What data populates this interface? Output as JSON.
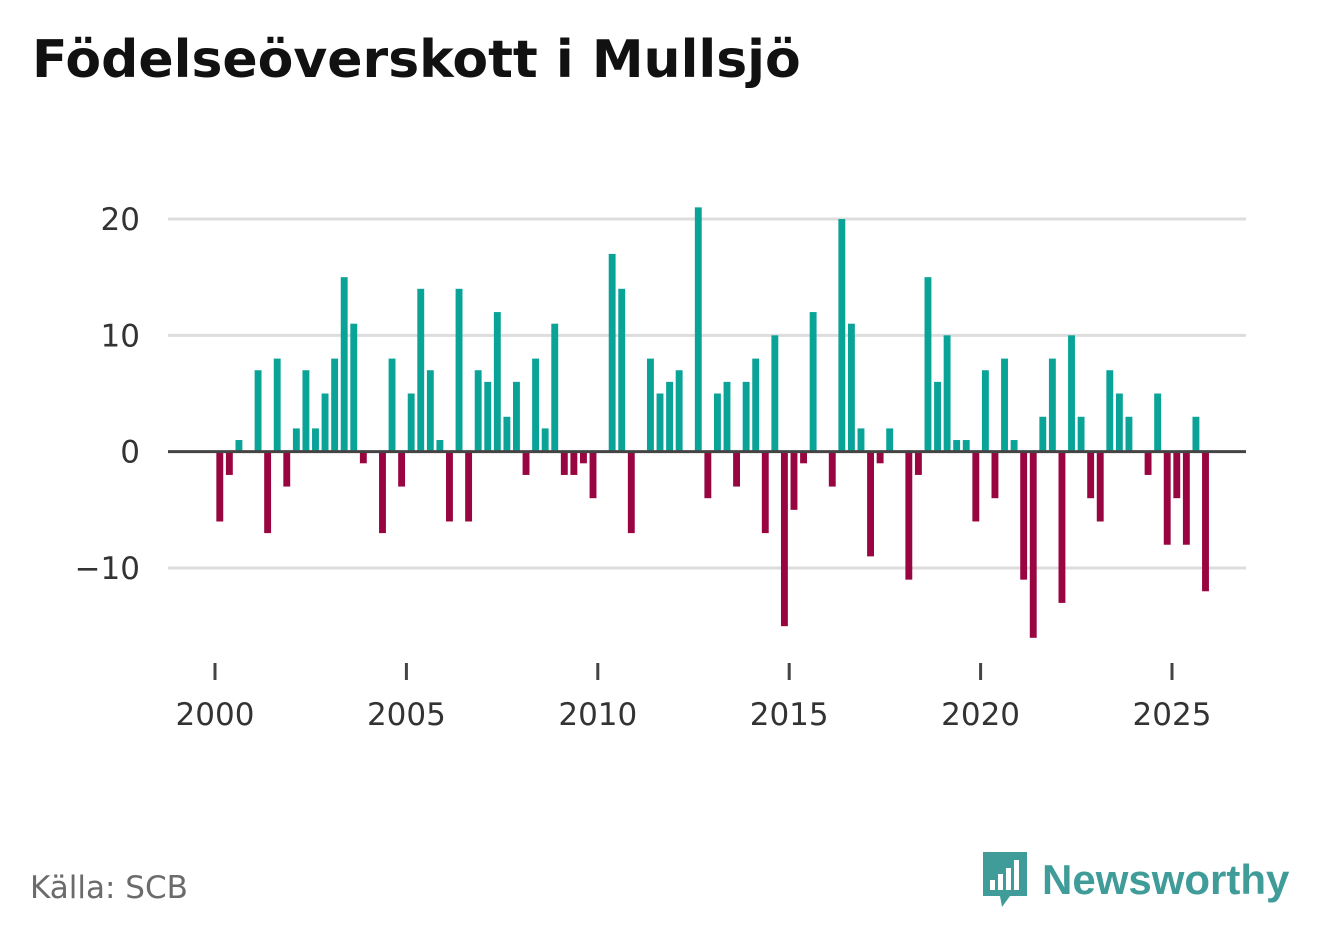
{
  "title": "Födelseöverskott i Mullsjö",
  "source": "Källa: SCB",
  "brand": {
    "name": "Newsworthy",
    "icon": "newsworthy-logo-icon",
    "color": "#3f9c98"
  },
  "colors": {
    "positive": "#0aa398",
    "negative": "#990540",
    "grid": "#dddddd",
    "zero": "#444444",
    "axis_text": "#333333"
  },
  "chart_data": {
    "type": "bar",
    "title": "Födelseöverskott i Mullsjö",
    "xlabel": "",
    "ylabel": "",
    "ylim": [
      -17,
      21
    ],
    "yticks": [
      20,
      10,
      0,
      -10
    ],
    "ytick_labels": [
      "20",
      "10",
      "0",
      "−10"
    ],
    "xlim": [
      1999.25,
      2027.5
    ],
    "xticks": [
      2000,
      2005,
      2010,
      2015,
      2020,
      2025
    ],
    "xtick_labels": [
      "2000",
      "2005",
      "2010",
      "2015",
      "2020",
      "2025"
    ],
    "grid": true,
    "bar_width_years": 0.18,
    "x": [
      2000.125,
      2000.375,
      2000.625,
      2000.875,
      2001.125,
      2001.375,
      2001.625,
      2001.875,
      2002.125,
      2002.375,
      2002.625,
      2002.875,
      2003.125,
      2003.375,
      2003.625,
      2003.875,
      2004.125,
      2004.375,
      2004.625,
      2004.875,
      2005.125,
      2005.375,
      2005.625,
      2005.875,
      2006.125,
      2006.375,
      2006.625,
      2006.875,
      2007.125,
      2007.375,
      2007.625,
      2007.875,
      2008.125,
      2008.375,
      2008.625,
      2008.875,
      2009.125,
      2009.375,
      2009.625,
      2009.875,
      2010.125,
      2010.375,
      2010.625,
      2010.875,
      2011.125,
      2011.375,
      2011.625,
      2011.875,
      2012.125,
      2012.375,
      2012.625,
      2012.875,
      2013.125,
      2013.375,
      2013.625,
      2013.875,
      2014.125,
      2014.375,
      2014.625,
      2014.875,
      2015.125,
      2015.375,
      2015.625,
      2015.875,
      2016.125,
      2016.375,
      2016.625,
      2016.875,
      2017.125,
      2017.375,
      2017.625,
      2017.875,
      2018.125,
      2018.375,
      2018.625,
      2018.875,
      2019.125,
      2019.375,
      2019.625,
      2019.875,
      2020.125,
      2020.375,
      2020.625,
      2020.875,
      2021.125,
      2021.375,
      2021.625,
      2021.875,
      2022.125,
      2022.375,
      2022.625,
      2022.875,
      2023.125,
      2023.375,
      2023.625,
      2023.875,
      2024.125,
      2024.375,
      2024.625,
      2024.875,
      2025.125,
      2025.375,
      2025.625,
      2025.875
    ],
    "values": [
      -6,
      -2,
      1,
      0,
      7,
      -7,
      8,
      -3,
      2,
      7,
      2,
      5,
      8,
      15,
      11,
      -1,
      0,
      -7,
      8,
      -3,
      5,
      14,
      7,
      1,
      -6,
      14,
      -6,
      7,
      6,
      12,
      3,
      6,
      -2,
      8,
      2,
      11,
      -2,
      -2,
      -1,
      -4,
      0,
      17,
      14,
      -7,
      0,
      8,
      5,
      6,
      7,
      0,
      21,
      -4,
      5,
      6,
      -3,
      6,
      8,
      -7,
      10,
      -15,
      -5,
      -1,
      12,
      0,
      -3,
      20,
      11,
      2,
      -9,
      -1,
      2,
      0,
      -11,
      -2,
      15,
      6,
      10,
      1,
      1,
      -6,
      7,
      -4,
      8,
      1,
      -11,
      -16,
      3,
      8,
      -13,
      10,
      3,
      -4,
      -6,
      7,
      5,
      3,
      0,
      -2,
      5,
      -8,
      -4,
      -8,
      3,
      -12
    ]
  }
}
